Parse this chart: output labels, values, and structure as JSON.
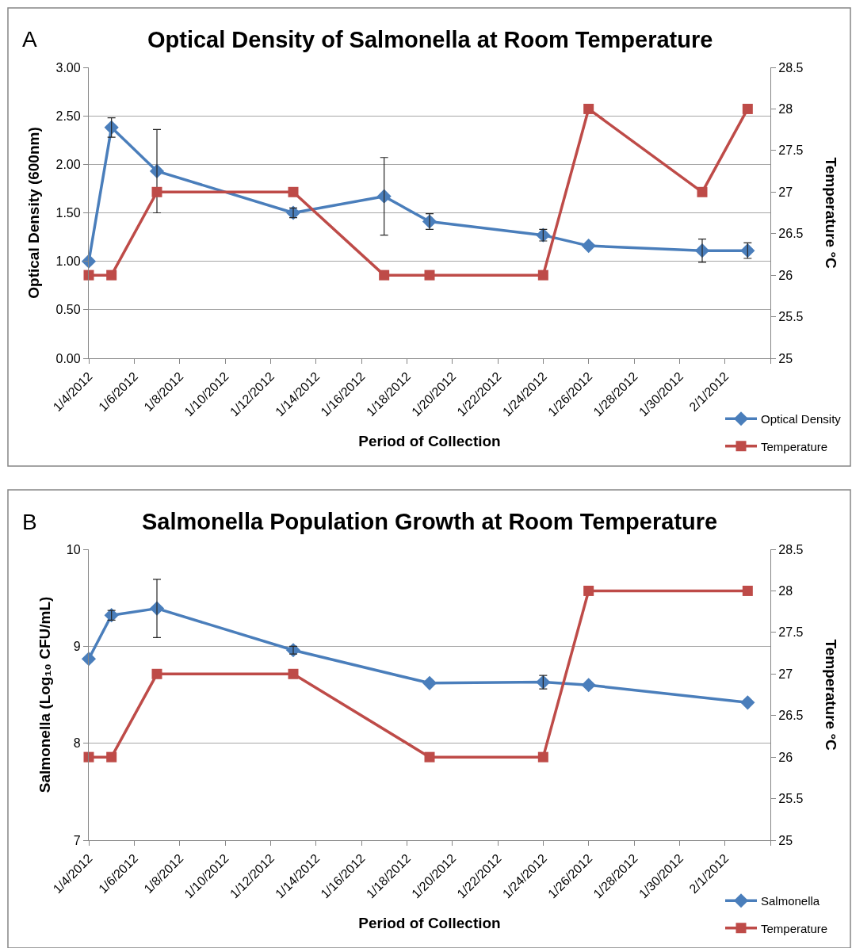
{
  "chart_data": [
    {
      "type": "line",
      "title": "Optical Density of Salmonella at Room Temperature",
      "xlabel": "Period of Collection",
      "ylabel": "Optical Density (600nm)",
      "y2label": "Temperature °C",
      "annotations": [
        "A"
      ],
      "x": [
        "2012-01-04",
        "2012-01-05",
        "2012-01-07",
        "2012-01-13",
        "2012-01-17",
        "2012-01-19",
        "2012-01-24",
        "2012-01-26",
        "2012-01-31",
        "2012-02-02"
      ],
      "series": [
        {
          "name": "Optical Density",
          "color": "#4a7ebb",
          "marker": "diamond",
          "values": [
            1.0,
            2.38,
            1.93,
            1.5,
            1.67,
            1.41,
            1.27,
            1.16,
            1.11,
            1.11
          ],
          "errors": [
            null,
            0.1,
            0.43,
            0.05,
            0.4,
            0.08,
            0.06,
            null,
            0.12,
            0.08
          ]
        },
        {
          "name": "Temperature",
          "color": "#be4b48",
          "marker": "square",
          "axis": "y2",
          "values": [
            26,
            26,
            27,
            27,
            26,
            26,
            26,
            28,
            27,
            28
          ]
        }
      ],
      "xlim": [
        "2012-01-04",
        "2012-02-03"
      ],
      "xticks": [
        {
          "value": "2012-01-04",
          "label": "1/4/2012"
        },
        {
          "value": "2012-01-06",
          "label": "1/6/2012"
        },
        {
          "value": "2012-01-08",
          "label": "1/8/2012"
        },
        {
          "value": "2012-01-10",
          "label": "1/10/2012"
        },
        {
          "value": "2012-01-12",
          "label": "1/12/2012"
        },
        {
          "value": "2012-01-14",
          "label": "1/14/2012"
        },
        {
          "value": "2012-01-16",
          "label": "1/16/2012"
        },
        {
          "value": "2012-01-18",
          "label": "1/18/2012"
        },
        {
          "value": "2012-01-20",
          "label": "1/20/2012"
        },
        {
          "value": "2012-01-22",
          "label": "1/22/2012"
        },
        {
          "value": "2012-01-24",
          "label": "1/24/2012"
        },
        {
          "value": "2012-01-26",
          "label": "1/26/2012"
        },
        {
          "value": "2012-01-28",
          "label": "1/28/2012"
        },
        {
          "value": "2012-01-30",
          "label": "1/30/2012"
        },
        {
          "value": "2012-02-01",
          "label": "2/1/2012"
        },
        {
          "value": "2012-02-03",
          "label": null
        }
      ],
      "ylim": [
        0,
        3
      ],
      "yticks": [
        {
          "value": 0,
          "label": "0.00"
        },
        {
          "value": 0.5,
          "label": "0.50"
        },
        {
          "value": 1,
          "label": "1.00"
        },
        {
          "value": 1.5,
          "label": "1.50"
        },
        {
          "value": 2,
          "label": "2.00"
        },
        {
          "value": 2.5,
          "label": "2.50"
        },
        {
          "value": 3,
          "label": "3.00"
        }
      ],
      "y2lim": [
        25,
        28.5
      ],
      "y2ticks": [
        25,
        25.5,
        26,
        26.5,
        27,
        27.5,
        28,
        28.5
      ],
      "grid": "y",
      "legend": "bottom right",
      "line_style": "solid"
    },
    {
      "type": "line",
      "title": "Salmonella Population Growth at Room Temperature",
      "xlabel": "Period of Collection",
      "ylabel": "Salmonella (Log₁₀ CFU/mL)",
      "y2label": "Temperature °C",
      "annotations": [
        "B"
      ],
      "x": [
        "2012-01-04",
        "2012-01-05",
        "2012-01-07",
        "2012-01-13",
        "2012-01-19",
        "2012-01-24",
        "2012-01-26",
        "2012-02-02"
      ],
      "series": [
        {
          "name": "Salmonella",
          "color": "#4a7ebb",
          "marker": "diamond",
          "values": [
            8.87,
            9.32,
            9.39,
            8.96,
            8.62,
            8.63,
            8.6,
            8.42
          ],
          "errors": [
            null,
            0.05,
            0.3,
            0.04,
            null,
            0.07,
            null,
            null
          ]
        },
        {
          "name": "Temperature",
          "color": "#be4b48",
          "marker": "square",
          "axis": "y2",
          "values": [
            26,
            26,
            27,
            27,
            26,
            26,
            28,
            28
          ]
        }
      ],
      "xlim": [
        "2012-01-04",
        "2012-02-03"
      ],
      "xticks": [
        {
          "value": "2012-01-04",
          "label": "1/4/2012"
        },
        {
          "value": "2012-01-06",
          "label": "1/6/2012"
        },
        {
          "value": "2012-01-08",
          "label": "1/8/2012"
        },
        {
          "value": "2012-01-10",
          "label": "1/10/2012"
        },
        {
          "value": "2012-01-12",
          "label": "1/12/2012"
        },
        {
          "value": "2012-01-14",
          "label": "1/14/2012"
        },
        {
          "value": "2012-01-16",
          "label": "1/16/2012"
        },
        {
          "value": "2012-01-18",
          "label": "1/18/2012"
        },
        {
          "value": "2012-01-20",
          "label": "1/20/2012"
        },
        {
          "value": "2012-01-22",
          "label": "1/22/2012"
        },
        {
          "value": "2012-01-24",
          "label": "1/24/2012"
        },
        {
          "value": "2012-01-26",
          "label": "1/26/2012"
        },
        {
          "value": "2012-01-28",
          "label": "1/28/2012"
        },
        {
          "value": "2012-01-30",
          "label": "1/30/2012"
        },
        {
          "value": "2012-02-01",
          "label": "2/1/2012"
        },
        {
          "value": "2012-02-03",
          "label": null
        }
      ],
      "ylim": [
        7,
        10
      ],
      "yticks": [
        7,
        8,
        9,
        10
      ],
      "y2lim": [
        25,
        28.5
      ],
      "y2ticks": [
        25,
        25.5,
        26,
        26.5,
        27,
        27.5,
        28,
        28.5
      ],
      "grid": "y",
      "legend": "bottom right",
      "line_style": "solid"
    }
  ]
}
